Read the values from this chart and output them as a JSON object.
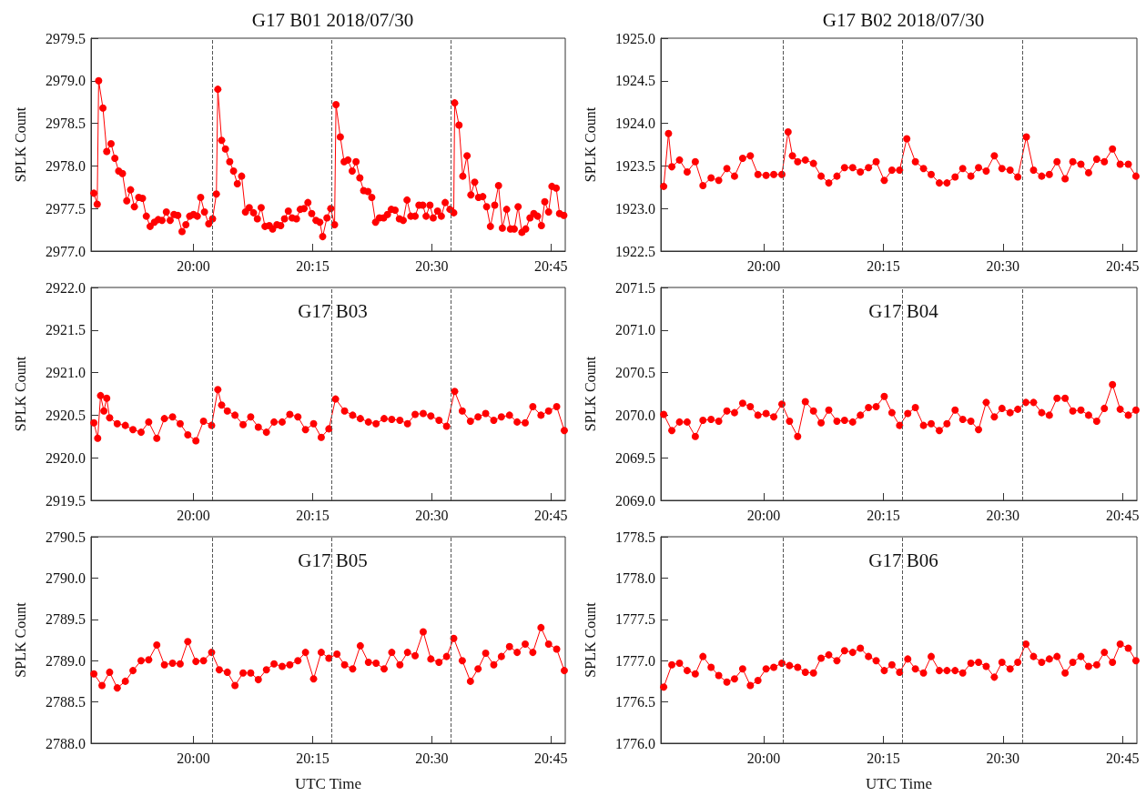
{
  "chart_data": [
    {
      "type": "line",
      "title": "G17 B01 2018/07/30",
      "ylabel": "SPLK Count",
      "color": "#ff0000",
      "marker": "circle",
      "xlim": [
        19.785,
        20.78
      ],
      "xticks": [
        {
          "value": 20,
          "label": "20:00"
        },
        {
          "value": 20.25,
          "label": "20:15"
        },
        {
          "value": 20.5,
          "label": "20:30"
        },
        {
          "value": 20.75,
          "label": "20:45"
        }
      ],
      "ylim": [
        2977,
        2979.5
      ],
      "yticks": [
        {
          "value": 2977,
          "label": "2977.0"
        },
        2977.5,
        {
          "value": 2978,
          "label": "2978.0"
        },
        2978.5,
        {
          "value": 2979,
          "label": "2979.0"
        },
        2979.5
      ],
      "ref_lines": [
        {
          "axis": "x",
          "value": 20.039,
          "color": "#555555",
          "line_style": "dashed"
        },
        {
          "axis": "x",
          "value": 20.289,
          "color": "#555555",
          "line_style": "dashed"
        },
        {
          "axis": "x",
          "value": 20.538,
          "color": "#555555",
          "line_style": "dashed"
        }
      ],
      "x": [
        19.791,
        19.798,
        19.801,
        19.81,
        19.818,
        19.827,
        19.835,
        19.843,
        19.851,
        19.86,
        19.868,
        19.876,
        19.885,
        19.893,
        19.901,
        19.909,
        19.918,
        19.926,
        19.934,
        19.943,
        19.951,
        19.959,
        19.967,
        19.976,
        19.984,
        19.992,
        20.0,
        20.008,
        20.015,
        20.023,
        20.032,
        20.04,
        20.048,
        20.051,
        20.059,
        20.067,
        20.076,
        20.084,
        20.092,
        20.101,
        20.109,
        20.117,
        20.126,
        20.134,
        20.142,
        20.15,
        20.159,
        20.166,
        20.175,
        20.183,
        20.191,
        20.199,
        20.207,
        20.216,
        20.224,
        20.232,
        20.24,
        20.248,
        20.257,
        20.265,
        20.271,
        20.28,
        20.288,
        20.296,
        20.299,
        20.308,
        20.316,
        20.324,
        20.333,
        20.341,
        20.349,
        20.357,
        20.366,
        20.374,
        20.382,
        20.39,
        20.399,
        20.407,
        20.415,
        20.423,
        20.432,
        20.44,
        20.448,
        20.456,
        20.465,
        20.473,
        20.481,
        20.488,
        20.496,
        20.503,
        20.512,
        20.52,
        20.528,
        20.538,
        20.546,
        20.548,
        20.557,
        20.565,
        20.574,
        20.582,
        20.59,
        20.598,
        20.607,
        20.615,
        20.623,
        20.632,
        20.64,
        20.648,
        20.657,
        20.665,
        20.673,
        20.681,
        20.689,
        20.697,
        20.706,
        20.714,
        20.722,
        20.73,
        20.737,
        20.745,
        20.752,
        20.761,
        20.768,
        20.777
      ],
      "values": [
        2977.68,
        2977.55,
        2979.0,
        2978.68,
        2978.17,
        2978.26,
        2978.09,
        2977.94,
        2977.91,
        2977.59,
        2977.72,
        2977.52,
        2977.63,
        2977.62,
        2977.41,
        2977.29,
        2977.34,
        2977.37,
        2977.36,
        2977.46,
        2977.36,
        2977.43,
        2977.42,
        2977.23,
        2977.31,
        2977.41,
        2977.43,
        2977.41,
        2977.63,
        2977.46,
        2977.32,
        2977.38,
        2977.67,
        2978.9,
        2978.3,
        2978.2,
        2978.05,
        2977.94,
        2977.79,
        2977.88,
        2977.46,
        2977.51,
        2977.45,
        2977.38,
        2977.51,
        2977.29,
        2977.3,
        2977.26,
        2977.31,
        2977.3,
        2977.38,
        2977.47,
        2977.39,
        2977.38,
        2977.49,
        2977.5,
        2977.57,
        2977.44,
        2977.36,
        2977.34,
        2977.17,
        2977.39,
        2977.5,
        2977.31,
        2978.72,
        2978.34,
        2978.05,
        2978.07,
        2977.94,
        2978.05,
        2977.86,
        2977.71,
        2977.7,
        2977.63,
        2977.34,
        2977.39,
        2977.39,
        2977.43,
        2977.49,
        2977.48,
        2977.38,
        2977.36,
        2977.6,
        2977.41,
        2977.41,
        2977.54,
        2977.54,
        2977.41,
        2977.54,
        2977.39,
        2977.47,
        2977.41,
        2977.57,
        2977.49,
        2977.45,
        2978.74,
        2978.48,
        2977.88,
        2978.12,
        2977.66,
        2977.81,
        2977.63,
        2977.64,
        2977.52,
        2977.29,
        2977.54,
        2977.77,
        2977.27,
        2977.49,
        2977.26,
        2977.26,
        2977.52,
        2977.22,
        2977.26,
        2977.39,
        2977.44,
        2977.41,
        2977.3,
        2977.58,
        2977.46,
        2977.76,
        2977.74,
        2977.44,
        2977.42
      ]
    },
    {
      "type": "line",
      "title": "G17 B02 2018/07/30",
      "ylabel": "SPLK Count",
      "color": "#ff0000",
      "marker": "circle",
      "xlim": [
        19.785,
        20.78
      ],
      "xticks": [
        {
          "value": 20,
          "label": "20:00"
        },
        {
          "value": 20.25,
          "label": "20:15"
        },
        {
          "value": 20.5,
          "label": "20:30"
        },
        {
          "value": 20.75,
          "label": "20:45"
        }
      ],
      "ylim": [
        1922.5,
        1925
      ],
      "yticks": [
        1922.5,
        {
          "value": 1923,
          "label": "1923.0"
        },
        1923.5,
        {
          "value": 1924,
          "label": "1924.0"
        },
        1924.5,
        {
          "value": 1925,
          "label": "1925.0"
        }
      ],
      "ref_lines": [
        {
          "axis": "x",
          "value": 20.039,
          "color": "#555555",
          "line_style": "dashed"
        },
        {
          "axis": "x",
          "value": 20.289,
          "color": "#555555",
          "line_style": "dashed"
        },
        {
          "axis": "x",
          "value": 20.538,
          "color": "#555555",
          "line_style": "dashed"
        }
      ],
      "x": [
        19.791,
        19.801,
        19.808,
        19.824,
        19.84,
        19.857,
        19.873,
        19.89,
        19.906,
        19.923,
        19.939,
        19.956,
        19.972,
        19.988,
        20.005,
        20.021,
        20.038,
        20.051,
        20.06,
        20.071,
        20.087,
        20.104,
        20.12,
        20.136,
        20.153,
        20.169,
        20.186,
        20.202,
        20.219,
        20.235,
        20.252,
        20.268,
        20.284,
        20.299,
        20.317,
        20.334,
        20.35,
        20.367,
        20.383,
        20.4,
        20.416,
        20.433,
        20.449,
        20.465,
        20.482,
        20.498,
        20.515,
        20.531,
        20.549,
        20.564,
        20.581,
        20.597,
        20.613,
        20.63,
        20.646,
        20.663,
        20.679,
        20.696,
        20.712,
        20.729,
        20.745,
        20.762,
        20.778
      ],
      "values": [
        1923.26,
        1923.88,
        1923.49,
        1923.57,
        1923.43,
        1923.55,
        1923.27,
        1923.36,
        1923.33,
        1923.47,
        1923.38,
        1923.59,
        1923.62,
        1923.4,
        1923.39,
        1923.4,
        1923.4,
        1923.9,
        1923.62,
        1923.55,
        1923.57,
        1923.53,
        1923.38,
        1923.3,
        1923.38,
        1923.48,
        1923.48,
        1923.43,
        1923.48,
        1923.55,
        1923.33,
        1923.45,
        1923.45,
        1923.82,
        1923.55,
        1923.47,
        1923.4,
        1923.3,
        1923.3,
        1923.37,
        1923.47,
        1923.38,
        1923.48,
        1923.44,
        1923.62,
        1923.47,
        1923.45,
        1923.37,
        1923.84,
        1923.45,
        1923.38,
        1923.4,
        1923.55,
        1923.35,
        1923.55,
        1923.52,
        1923.42,
        1923.58,
        1923.55,
        1923.7,
        1923.52,
        1923.52,
        1923.38
      ]
    },
    {
      "type": "line",
      "title": "G17 B03",
      "ylabel": "SPLK Count",
      "color": "#ff0000",
      "marker": "circle",
      "xlim": [
        19.785,
        20.78
      ],
      "xticks": [
        {
          "value": 20,
          "label": "20:00"
        },
        {
          "value": 20.25,
          "label": "20:15"
        },
        {
          "value": 20.5,
          "label": "20:30"
        },
        {
          "value": 20.75,
          "label": "20:45"
        }
      ],
      "ylim": [
        2919.5,
        2922
      ],
      "yticks": [
        2919.5,
        {
          "value": 2920,
          "label": "2920.0"
        },
        2920.5,
        {
          "value": 2921,
          "label": "2921.0"
        },
        2921.5,
        {
          "value": 2922,
          "label": "2922.0"
        }
      ],
      "ref_lines": [
        {
          "axis": "x",
          "value": 20.039,
          "color": "#555555",
          "line_style": "dashed"
        },
        {
          "axis": "x",
          "value": 20.289,
          "color": "#555555",
          "line_style": "dashed"
        },
        {
          "axis": "x",
          "value": 20.538,
          "color": "#555555",
          "line_style": "dashed"
        }
      ],
      "x": [
        19.791,
        19.799,
        19.805,
        19.812,
        19.818,
        19.824,
        19.84,
        19.857,
        19.873,
        19.89,
        19.906,
        19.923,
        19.939,
        19.956,
        19.972,
        19.988,
        20.005,
        20.021,
        20.038,
        20.051,
        20.059,
        20.071,
        20.087,
        20.104,
        20.12,
        20.136,
        20.153,
        20.169,
        20.186,
        20.202,
        20.219,
        20.235,
        20.252,
        20.268,
        20.284,
        20.298,
        20.317,
        20.334,
        20.35,
        20.367,
        20.383,
        20.4,
        20.416,
        20.433,
        20.449,
        20.465,
        20.482,
        20.498,
        20.515,
        20.531,
        20.548,
        20.564,
        20.581,
        20.597,
        20.613,
        20.63,
        20.646,
        20.663,
        20.679,
        20.696,
        20.712,
        20.729,
        20.745,
        20.762,
        20.778
      ],
      "values": [
        2920.41,
        2920.23,
        2920.73,
        2920.55,
        2920.7,
        2920.47,
        2920.4,
        2920.38,
        2920.33,
        2920.3,
        2920.42,
        2920.23,
        2920.46,
        2920.48,
        2920.4,
        2920.27,
        2920.2,
        2920.43,
        2920.38,
        2920.8,
        2920.62,
        2920.55,
        2920.5,
        2920.39,
        2920.48,
        2920.36,
        2920.3,
        2920.42,
        2920.42,
        2920.51,
        2920.48,
        2920.33,
        2920.4,
        2920.24,
        2920.34,
        2920.69,
        2920.55,
        2920.5,
        2920.46,
        2920.42,
        2920.4,
        2920.46,
        2920.45,
        2920.44,
        2920.4,
        2920.51,
        2920.52,
        2920.49,
        2920.44,
        2920.37,
        2920.78,
        2920.55,
        2920.43,
        2920.48,
        2920.52,
        2920.44,
        2920.48,
        2920.5,
        2920.42,
        2920.41,
        2920.6,
        2920.5,
        2920.55,
        2920.6,
        2920.32
      ]
    },
    {
      "type": "line",
      "title": "G17 B04",
      "ylabel": "SPLK Count",
      "color": "#ff0000",
      "marker": "circle",
      "xlim": [
        19.785,
        20.78
      ],
      "xticks": [
        {
          "value": 20,
          "label": "20:00"
        },
        {
          "value": 20.25,
          "label": "20:15"
        },
        {
          "value": 20.5,
          "label": "20:30"
        },
        {
          "value": 20.75,
          "label": "20:45"
        }
      ],
      "ylim": [
        2069,
        2071.5
      ],
      "yticks": [
        {
          "value": 2069,
          "label": "2069.0"
        },
        2069.5,
        {
          "value": 2070,
          "label": "2070.0"
        },
        2070.5,
        {
          "value": 2071,
          "label": "2071.0"
        },
        2071.5
      ],
      "ref_lines": [
        {
          "axis": "x",
          "value": 20.039,
          "color": "#555555",
          "line_style": "dashed"
        },
        {
          "axis": "x",
          "value": 20.289,
          "color": "#555555",
          "line_style": "dashed"
        },
        {
          "axis": "x",
          "value": 20.538,
          "color": "#555555",
          "line_style": "dashed"
        }
      ],
      "x": [
        19.791,
        19.808,
        19.824,
        19.84,
        19.857,
        19.873,
        19.89,
        19.906,
        19.923,
        19.939,
        19.956,
        19.972,
        19.988,
        20.005,
        20.021,
        20.038,
        20.054,
        20.071,
        20.087,
        20.104,
        20.12,
        20.136,
        20.153,
        20.169,
        20.186,
        20.202,
        20.219,
        20.235,
        20.252,
        20.268,
        20.284,
        20.301,
        20.317,
        20.334,
        20.35,
        20.367,
        20.383,
        20.4,
        20.416,
        20.433,
        20.449,
        20.465,
        20.482,
        20.498,
        20.515,
        20.531,
        20.548,
        20.564,
        20.581,
        20.597,
        20.613,
        20.63,
        20.646,
        20.663,
        20.679,
        20.696,
        20.712,
        20.729,
        20.745,
        20.762,
        20.778
      ],
      "values": [
        2070.01,
        2069.82,
        2069.92,
        2069.92,
        2069.75,
        2069.94,
        2069.95,
        2069.93,
        2070.05,
        2070.03,
        2070.14,
        2070.1,
        2070.0,
        2070.02,
        2069.98,
        2070.13,
        2069.93,
        2069.75,
        2070.16,
        2070.05,
        2069.91,
        2070.06,
        2069.93,
        2069.94,
        2069.92,
        2070.0,
        2070.09,
        2070.1,
        2070.22,
        2070.03,
        2069.88,
        2070.02,
        2070.09,
        2069.88,
        2069.9,
        2069.82,
        2069.9,
        2070.06,
        2069.95,
        2069.93,
        2069.83,
        2070.15,
        2069.98,
        2070.08,
        2070.03,
        2070.07,
        2070.15,
        2070.15,
        2070.03,
        2070.0,
        2070.2,
        2070.2,
        2070.05,
        2070.06,
        2070.0,
        2069.93,
        2070.08,
        2070.36,
        2070.07,
        2070.0,
        2070.06
      ]
    },
    {
      "type": "line",
      "title": "G17 B05",
      "xlabel": "UTC Time",
      "ylabel": "SPLK Count",
      "color": "#ff0000",
      "marker": "circle",
      "xlim": [
        19.785,
        20.78
      ],
      "xticks": [
        {
          "value": 20,
          "label": "20:00"
        },
        {
          "value": 20.25,
          "label": "20:15"
        },
        {
          "value": 20.5,
          "label": "20:30"
        },
        {
          "value": 20.75,
          "label": "20:45"
        }
      ],
      "ylim": [
        2788,
        2790.5
      ],
      "yticks": [
        {
          "value": 2788,
          "label": "2788.0"
        },
        2788.5,
        {
          "value": 2789,
          "label": "2789.0"
        },
        2789.5,
        {
          "value": 2790,
          "label": "2790.0"
        },
        2790.5
      ],
      "ref_lines": [
        {
          "axis": "x",
          "value": 20.039,
          "color": "#555555",
          "line_style": "dashed"
        },
        {
          "axis": "x",
          "value": 20.289,
          "color": "#555555",
          "line_style": "dashed"
        },
        {
          "axis": "x",
          "value": 20.538,
          "color": "#555555",
          "line_style": "dashed"
        }
      ],
      "x": [
        19.791,
        19.808,
        19.824,
        19.84,
        19.857,
        19.873,
        19.89,
        19.906,
        19.923,
        19.939,
        19.956,
        19.972,
        19.988,
        20.005,
        20.021,
        20.038,
        20.054,
        20.071,
        20.087,
        20.104,
        20.12,
        20.136,
        20.153,
        20.169,
        20.186,
        20.202,
        20.219,
        20.235,
        20.252,
        20.268,
        20.284,
        20.301,
        20.317,
        20.334,
        20.35,
        20.367,
        20.383,
        20.4,
        20.416,
        20.433,
        20.449,
        20.465,
        20.482,
        20.498,
        20.515,
        20.531,
        20.546,
        20.564,
        20.581,
        20.597,
        20.613,
        20.63,
        20.646,
        20.663,
        20.679,
        20.696,
        20.712,
        20.729,
        20.745,
        20.762,
        20.778
      ],
      "values": [
        2788.84,
        2788.7,
        2788.86,
        2788.67,
        2788.75,
        2788.88,
        2789.0,
        2789.01,
        2789.19,
        2788.95,
        2788.97,
        2788.96,
        2789.23,
        2788.99,
        2789.0,
        2789.1,
        2788.89,
        2788.86,
        2788.7,
        2788.85,
        2788.85,
        2788.77,
        2788.89,
        2788.96,
        2788.93,
        2788.95,
        2789.0,
        2789.1,
        2788.78,
        2789.1,
        2789.03,
        2789.08,
        2788.95,
        2788.9,
        2789.18,
        2788.98,
        2788.97,
        2788.9,
        2789.1,
        2788.95,
        2789.1,
        2789.06,
        2789.35,
        2789.02,
        2788.98,
        2789.05,
        2789.27,
        2789.0,
        2788.75,
        2788.9,
        2789.09,
        2788.95,
        2789.05,
        2789.17,
        2789.1,
        2789.2,
        2789.1,
        2789.4,
        2789.2,
        2789.14,
        2788.88
      ]
    },
    {
      "type": "line",
      "title": "G17 B06",
      "xlabel": "UTC Time",
      "ylabel": "SPLK Count",
      "color": "#ff0000",
      "marker": "circle",
      "xlim": [
        19.785,
        20.78
      ],
      "xticks": [
        {
          "value": 20,
          "label": "20:00"
        },
        {
          "value": 20.25,
          "label": "20:15"
        },
        {
          "value": 20.5,
          "label": "20:30"
        },
        {
          "value": 20.75,
          "label": "20:45"
        }
      ],
      "ylim": [
        1776,
        1778.5
      ],
      "yticks": [
        {
          "value": 1776,
          "label": "1776.0"
        },
        1776.5,
        {
          "value": 1777,
          "label": "1777.0"
        },
        1777.5,
        {
          "value": 1778,
          "label": "1778.0"
        },
        1778.5
      ],
      "ref_lines": [
        {
          "axis": "x",
          "value": 20.039,
          "color": "#555555",
          "line_style": "dashed"
        },
        {
          "axis": "x",
          "value": 20.289,
          "color": "#555555",
          "line_style": "dashed"
        },
        {
          "axis": "x",
          "value": 20.538,
          "color": "#555555",
          "line_style": "dashed"
        }
      ],
      "x": [
        19.791,
        19.808,
        19.824,
        19.84,
        19.857,
        19.873,
        19.89,
        19.906,
        19.923,
        19.939,
        19.956,
        19.972,
        19.988,
        20.005,
        20.021,
        20.038,
        20.054,
        20.071,
        20.087,
        20.104,
        20.12,
        20.136,
        20.153,
        20.169,
        20.186,
        20.202,
        20.219,
        20.235,
        20.252,
        20.268,
        20.284,
        20.301,
        20.317,
        20.334,
        20.35,
        20.367,
        20.383,
        20.4,
        20.416,
        20.433,
        20.449,
        20.465,
        20.482,
        20.498,
        20.515,
        20.531,
        20.548,
        20.564,
        20.581,
        20.597,
        20.613,
        20.63,
        20.646,
        20.663,
        20.679,
        20.696,
        20.712,
        20.729,
        20.745,
        20.762,
        20.778
      ],
      "values": [
        1776.68,
        1776.95,
        1776.97,
        1776.88,
        1776.84,
        1777.05,
        1776.92,
        1776.82,
        1776.74,
        1776.78,
        1776.9,
        1776.7,
        1776.76,
        1776.9,
        1776.92,
        1776.97,
        1776.94,
        1776.92,
        1776.86,
        1776.85,
        1777.03,
        1777.07,
        1777.0,
        1777.12,
        1777.1,
        1777.15,
        1777.05,
        1777.0,
        1776.88,
        1776.95,
        1776.86,
        1777.02,
        1776.9,
        1776.85,
        1777.05,
        1776.88,
        1776.88,
        1776.88,
        1776.85,
        1776.97,
        1776.98,
        1776.93,
        1776.8,
        1776.98,
        1776.9,
        1776.98,
        1777.2,
        1777.05,
        1776.98,
        1777.02,
        1777.05,
        1776.85,
        1776.98,
        1777.05,
        1776.93,
        1776.95,
        1777.1,
        1776.98,
        1777.2,
        1777.15,
        1777.0
      ]
    }
  ]
}
